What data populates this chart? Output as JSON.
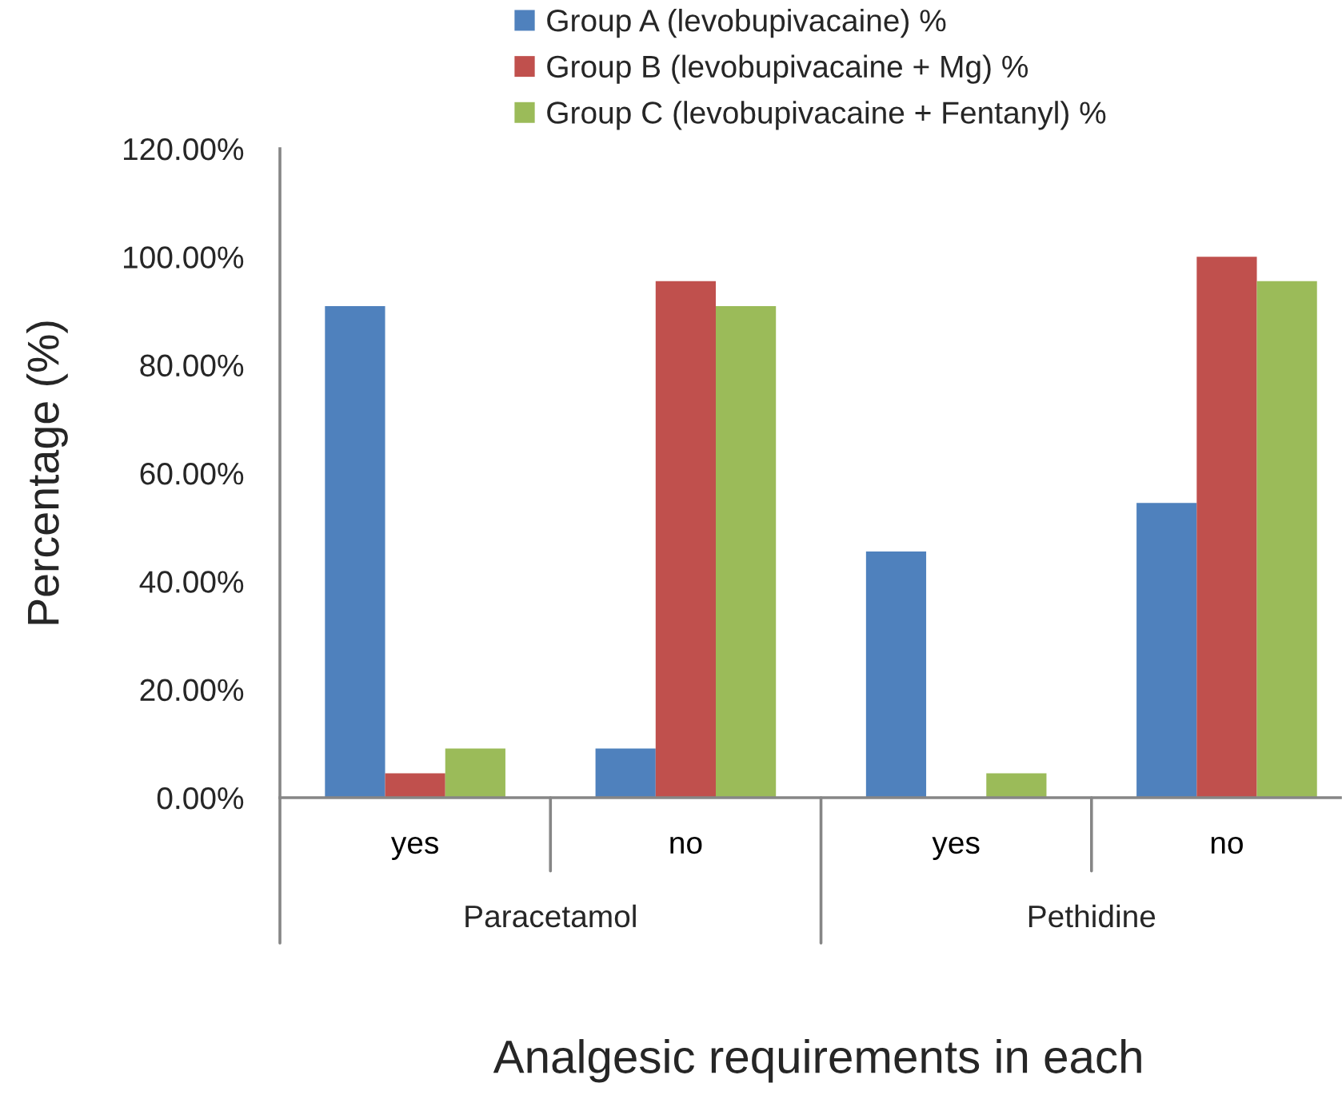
{
  "chart_data": {
    "type": "bar",
    "xlabel": "Analgesic requirements in each",
    "ylabel": "Percentage (%)",
    "categories": [
      "yes",
      "no",
      "yes",
      "no"
    ],
    "annotations": [
      "Paracetamol",
      "Pethidine"
    ],
    "series": [
      {
        "name": "Group A (levobupivacaine) %",
        "color": "#4f81bd",
        "values": [
          90.9,
          9.1,
          45.5,
          54.5
        ]
      },
      {
        "name": "Group B (levobupivacaine + Mg) %",
        "color": "#c0504d",
        "values": [
          4.5,
          95.5,
          0,
          100
        ]
      },
      {
        "name": "Group C (levobupivacaine + Fentanyl) %",
        "color": "#9bbb59",
        "values": [
          9.1,
          90.9,
          4.5,
          95.5
        ]
      }
    ],
    "ylim": [
      0,
      120
    ],
    "yticks": [
      {
        "value": 0,
        "label": "0.00%"
      },
      {
        "value": 20,
        "label": "20.00%"
      },
      {
        "value": 40,
        "label": "40.00%"
      },
      {
        "value": 60,
        "label": "60.00%"
      },
      {
        "value": 80,
        "label": "80.00%"
      },
      {
        "value": 100,
        "label": "100.00%"
      },
      {
        "value": 120,
        "label": "120.00%"
      }
    ],
    "legend": "top"
  }
}
